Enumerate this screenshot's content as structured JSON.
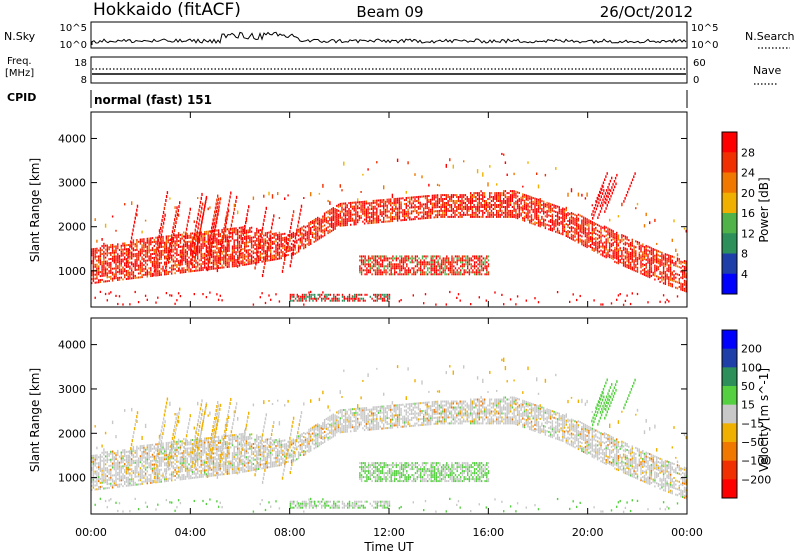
{
  "header": {
    "station": "Hokkaido (fitACF)",
    "beam": "Beam 09",
    "date": "26/Oct/2012"
  },
  "top_panels": {
    "nsky_label": "N.Sky",
    "nsky_ticks": [
      "10^5",
      "10^0"
    ],
    "nsearch_label": "N.Search",
    "nsearch_ticks": [
      "10^5",
      "10^0"
    ],
    "freq_label_line1": "Freq.",
    "freq_label_line2": "[MHz]",
    "freq_ticks": [
      "18",
      "8"
    ],
    "nave_label": "Nave",
    "nave_ticks": [
      "60",
      "0"
    ],
    "cpid_label": "CPID",
    "cpid_text": "normal (fast) 151"
  },
  "colors": {
    "power_scale": [
      "#0000ff",
      "#1f3fa8",
      "#2d8f5a",
      "#4fb34a",
      "#f0b000",
      "#f07800",
      "#f03000",
      "#ff0000"
    ],
    "velocity_scale": [
      "#0000ff",
      "#1f3fa8",
      "#2d8f5a",
      "#55d040",
      "#c8c8c8",
      "#f0b000",
      "#f07800",
      "#f03000",
      "#ff0000"
    ],
    "ground_scatter": "#c8c8c8"
  },
  "chart_data": [
    {
      "type": "heatmap",
      "panel": "power",
      "ylabel": "Slant Range [km]",
      "xlabel": "",
      "ylim": [
        180,
        4600
      ],
      "yticks": [
        1000,
        2000,
        3000,
        4000
      ],
      "x_tick_labels": [
        "00:00",
        "04:00",
        "08:00",
        "12:00",
        "16:00",
        "20:00",
        "00:00"
      ],
      "x_hours": [
        0,
        4,
        8,
        12,
        16,
        20,
        24
      ],
      "colorbar": {
        "label": "Power [dB]",
        "ticks": [
          "4",
          "8",
          "12",
          "16",
          "20",
          "24",
          "28"
        ]
      },
      "main_band": [
        {
          "t": 0,
          "r_lo": 700,
          "r_hi": 1500
        },
        {
          "t": 3,
          "r_lo": 900,
          "r_hi": 1800
        },
        {
          "t": 6,
          "r_lo": 1100,
          "r_hi": 2000
        },
        {
          "t": 8,
          "r_lo": 1300,
          "r_hi": 1800
        },
        {
          "t": 10,
          "r_lo": 2000,
          "r_hi": 2500
        },
        {
          "t": 12,
          "r_lo": 2100,
          "r_hi": 2600
        },
        {
          "t": 14,
          "r_lo": 2200,
          "r_hi": 2700
        },
        {
          "t": 17,
          "r_lo": 2200,
          "r_hi": 2800
        },
        {
          "t": 19,
          "r_lo": 1800,
          "r_hi": 2400
        },
        {
          "t": 21,
          "r_lo": 1200,
          "r_hi": 1900
        },
        {
          "t": 23,
          "r_lo": 700,
          "r_hi": 1400
        },
        {
          "t": 24,
          "r_lo": 500,
          "r_hi": 1200
        }
      ]
    },
    {
      "type": "heatmap",
      "panel": "velocity",
      "ylabel": "Slant Range [km]",
      "xlabel": "Time UT",
      "ylim": [
        180,
        4600
      ],
      "yticks": [
        1000,
        2000,
        3000,
        4000
      ],
      "x_tick_labels": [
        "00:00",
        "04:00",
        "08:00",
        "12:00",
        "16:00",
        "20:00",
        "00:00"
      ],
      "x_hours": [
        0,
        4,
        8,
        12,
        16,
        20,
        24
      ],
      "colorbar": {
        "label": "Velocity [m s^-1]",
        "ticks": [
          "200",
          "100",
          "50",
          "15",
          "−15",
          "−50",
          "−100",
          "−200"
        ]
      }
    }
  ]
}
